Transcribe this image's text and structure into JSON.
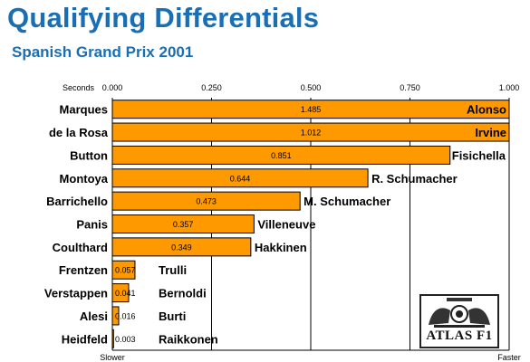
{
  "header": {
    "title": "Qualifying Differentials",
    "subtitle": "Spanish Grand Prix 2001"
  },
  "logo": {
    "text": "ATLAS F1"
  },
  "chart_data": {
    "type": "bar",
    "orientation": "horizontal",
    "title": "Qualifying Differentials",
    "subtitle": "Spanish Grand Prix 2001",
    "xlabel": "Seconds",
    "xlim": [
      0,
      1.0
    ],
    "xticks": [
      "0.000",
      "0.250",
      "0.500",
      "0.750",
      "1.000"
    ],
    "axis_left_label": "Slower",
    "axis_right_label": "Faster",
    "grid": true,
    "bar_color": "#ff9900",
    "categories": [
      "Marques",
      "de la Rosa",
      "Button",
      "Montoya",
      "Barrichello",
      "Panis",
      "Coulthard",
      "Frentzen",
      "Verstappen",
      "Alesi",
      "Heidfeld"
    ],
    "opponents": [
      "Alonso",
      "Irvine",
      "Fisichella",
      "R. Schumacher",
      "M. Schumacher",
      "Villeneuve",
      "Hakkinen",
      "Trulli",
      "Bernoldi",
      "Burti",
      "Raikkonen"
    ],
    "values": [
      1.485,
      1.012,
      0.851,
      0.644,
      0.473,
      0.357,
      0.349,
      0.057,
      0.041,
      0.016,
      0.003
    ],
    "value_labels": [
      "1.485",
      "1.012",
      "0.851",
      "0.644",
      "0.473",
      "0.357",
      "0.349",
      "0.057",
      "0.041",
      "0.016",
      "0.003"
    ]
  }
}
